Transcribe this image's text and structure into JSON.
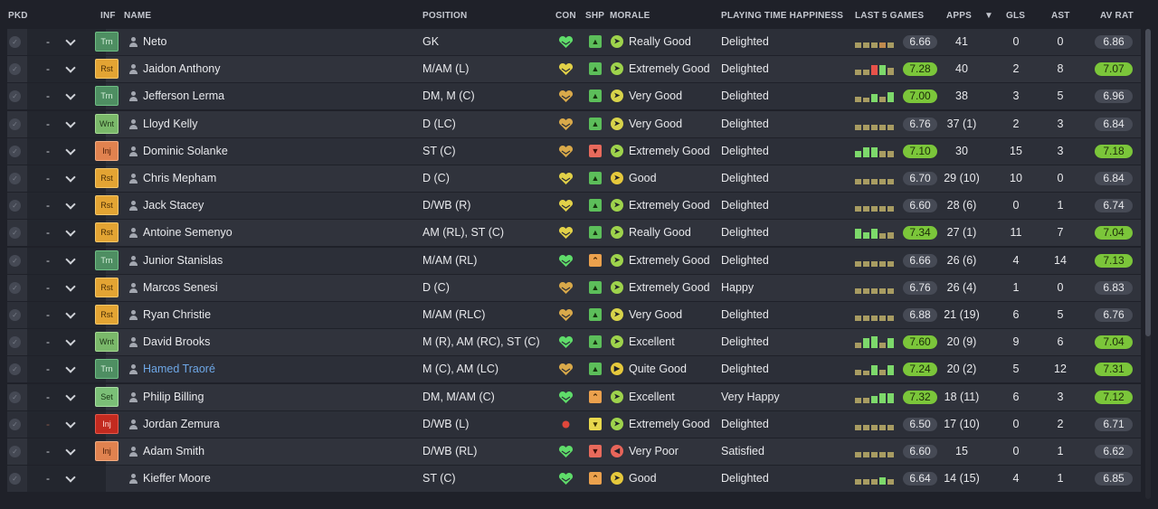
{
  "headers": {
    "pkd": "PKD",
    "inf": "INF",
    "name": "NAME",
    "position": "POSITION",
    "con": "CON",
    "shp": "SHP",
    "morale": "MORALE",
    "pth": "PLAYING TIME HAPPINESS",
    "form": "LAST 5 GAMES",
    "apps": "APPS",
    "gls": "GLS",
    "ast": "AST",
    "avrat": "AV RAT",
    "sort_indicator": "▼"
  },
  "colors": {
    "good_rating": "#7bc63a",
    "neutral_rating": "#464a55",
    "link": "#6ea7e6"
  },
  "players": [
    {
      "pkd": "-",
      "inf": "Trn",
      "inf_type": "trn",
      "name": "Neto",
      "position": "GK",
      "con": "green",
      "shp": "up",
      "morale": "Really Good",
      "morale_type": "rg",
      "pth": "Delighted",
      "form_bars": [
        0.45,
        0.45,
        0.45,
        0.5,
        0.45
      ],
      "form_colors": [
        "#a89c62",
        "#a89c62",
        "#a89c62",
        "#c08a4e",
        "#a89c62"
      ],
      "rating": "6.66",
      "rating_good": false,
      "apps": "41",
      "gls": "0",
      "ast": "0",
      "avrat": "6.86",
      "avrat_good": false
    },
    {
      "pkd": "-",
      "inf": "Rst",
      "inf_type": "rst",
      "name": "Jaidon Anthony",
      "position": "M/AM (L)",
      "con": "yellow",
      "shp": "up",
      "morale": "Extremely Good",
      "morale_type": "eg",
      "pth": "Delighted",
      "form_bars": [
        0.45,
        0.5,
        0.85,
        0.85,
        0.6
      ],
      "form_colors": [
        "#a89c62",
        "#a89c62",
        "#e7524a",
        "#7dd96b",
        "#a89c62"
      ],
      "rating": "7.28",
      "rating_good": true,
      "apps": "40",
      "gls": "2",
      "ast": "8",
      "avrat": "7.07",
      "avrat_good": true
    },
    {
      "pkd": "-",
      "inf": "Trn",
      "inf_type": "trn",
      "name": "Jefferson Lerma",
      "position": "DM, M (C)",
      "con": "orange",
      "shp": "up",
      "morale": "Very Good",
      "morale_type": "vg",
      "pth": "Delighted",
      "form_bars": [
        0.5,
        0.45,
        0.75,
        0.5,
        0.85
      ],
      "form_colors": [
        "#a89c62",
        "#a89c62",
        "#7dd96b",
        "#a89c62",
        "#7dd96b"
      ],
      "rating": "7.00",
      "rating_good": true,
      "apps": "38",
      "gls": "3",
      "ast": "5",
      "avrat": "6.96",
      "avrat_good": false
    },
    {
      "pkd": "-",
      "inf": "Wnt",
      "inf_type": "wnt",
      "name": "Lloyd Kelly",
      "position": "D (LC)",
      "con": "orange",
      "shp": "up",
      "morale": "Very Good",
      "morale_type": "vg",
      "pth": "Delighted",
      "form_bars": [
        0.45,
        0.45,
        0.45,
        0.45,
        0.45
      ],
      "form_colors": [
        "#a89c62",
        "#a89c62",
        "#a89c62",
        "#a89c62",
        "#a89c62"
      ],
      "rating": "6.76",
      "rating_good": false,
      "apps": "37 (1)",
      "gls": "2",
      "ast": "3",
      "avrat": "6.84",
      "avrat_good": false
    },
    {
      "pkd": "-",
      "inf": "Inj",
      "inf_type": "inj",
      "name": "Dominic Solanke",
      "position": "ST (C)",
      "con": "orange",
      "shp": "down",
      "morale": "Extremely Good",
      "morale_type": "eg",
      "pth": "Delighted",
      "form_bars": [
        0.5,
        0.85,
        0.85,
        0.5,
        0.5
      ],
      "form_colors": [
        "#7dd96b",
        "#7dd96b",
        "#7dd96b",
        "#a89c62",
        "#a89c62"
      ],
      "rating": "7.10",
      "rating_good": true,
      "apps": "30",
      "gls": "15",
      "ast": "3",
      "avrat": "7.18",
      "avrat_good": true
    },
    {
      "pkd": "-",
      "inf": "Rst",
      "inf_type": "rst",
      "name": "Chris Mepham",
      "position": "D (C)",
      "con": "yellow",
      "shp": "up",
      "morale": "Good",
      "morale_type": "g",
      "pth": "Delighted",
      "form_bars": [
        0.45,
        0.45,
        0.45,
        0.45,
        0.45
      ],
      "form_colors": [
        "#a89c62",
        "#a89c62",
        "#a89c62",
        "#a89c62",
        "#a89c62"
      ],
      "rating": "6.70",
      "rating_good": false,
      "apps": "29 (10)",
      "gls": "10",
      "ast": "0",
      "avrat": "6.84",
      "avrat_good": false
    },
    {
      "pkd": "-",
      "inf": "Rst",
      "inf_type": "rst",
      "name": "Jack Stacey",
      "position": "D/WB (R)",
      "con": "yellow",
      "shp": "up",
      "morale": "Extremely Good",
      "morale_type": "eg",
      "pth": "Delighted",
      "form_bars": [
        0.45,
        0.45,
        0.45,
        0.45,
        0.45
      ],
      "form_colors": [
        "#a89c62",
        "#a89c62",
        "#a89c62",
        "#a89c62",
        "#a89c62"
      ],
      "rating": "6.60",
      "rating_good": false,
      "apps": "28 (6)",
      "gls": "0",
      "ast": "1",
      "avrat": "6.74",
      "avrat_good": false
    },
    {
      "pkd": "-",
      "inf": "Rst",
      "inf_type": "rst",
      "name": "Antoine Semenyo",
      "position": "AM (RL), ST (C)",
      "con": "yellow",
      "shp": "up",
      "morale": "Really Good",
      "morale_type": "rg",
      "pth": "Delighted",
      "form_bars": [
        0.85,
        0.6,
        0.85,
        0.5,
        0.6
      ],
      "form_colors": [
        "#7dd96b",
        "#7dd96b",
        "#7dd96b",
        "#a89c62",
        "#a89c62"
      ],
      "rating": "7.34",
      "rating_good": true,
      "apps": "27 (1)",
      "gls": "11",
      "ast": "7",
      "avrat": "7.04",
      "avrat_good": true
    },
    {
      "pkd": "-",
      "inf": "Trn",
      "inf_type": "trn",
      "name": "Junior Stanislas",
      "position": "M/AM (RL)",
      "con": "green",
      "shp": "warn",
      "morale": "Extremely Good",
      "morale_type": "eg",
      "pth": "Delighted",
      "form_bars": [
        0.45,
        0.45,
        0.45,
        0.45,
        0.45
      ],
      "form_colors": [
        "#a89c62",
        "#a89c62",
        "#a89c62",
        "#a89c62",
        "#a89c62"
      ],
      "rating": "6.66",
      "rating_good": false,
      "apps": "26 (6)",
      "gls": "4",
      "ast": "14",
      "avrat": "7.13",
      "avrat_good": true
    },
    {
      "pkd": "-",
      "inf": "Rst",
      "inf_type": "rst",
      "name": "Marcos Senesi",
      "position": "D (C)",
      "con": "orange",
      "shp": "up",
      "morale": "Extremely Good",
      "morale_type": "eg",
      "pth": "Happy",
      "form_bars": [
        0.45,
        0.45,
        0.45,
        0.45,
        0.45
      ],
      "form_colors": [
        "#a89c62",
        "#a89c62",
        "#a89c62",
        "#a89c62",
        "#a89c62"
      ],
      "rating": "6.76",
      "rating_good": false,
      "apps": "26 (4)",
      "gls": "1",
      "ast": "0",
      "avrat": "6.83",
      "avrat_good": false
    },
    {
      "pkd": "-",
      "inf": "Rst",
      "inf_type": "rst",
      "name": "Ryan Christie",
      "position": "M/AM (RLC)",
      "con": "orange",
      "shp": "up",
      "morale": "Very Good",
      "morale_type": "vg",
      "pth": "Delighted",
      "form_bars": [
        0.45,
        0.45,
        0.45,
        0.45,
        0.45
      ],
      "form_colors": [
        "#a89c62",
        "#a89c62",
        "#a89c62",
        "#a89c62",
        "#a89c62"
      ],
      "rating": "6.88",
      "rating_good": false,
      "apps": "21 (19)",
      "gls": "6",
      "ast": "5",
      "avrat": "6.76",
      "avrat_good": false
    },
    {
      "pkd": "-",
      "inf": "Wnt",
      "inf_type": "wnt",
      "name": "David Brooks",
      "position": "M (R), AM (RC), ST (C)",
      "con": "green",
      "shp": "up",
      "morale": "Excellent",
      "morale_type": "ex",
      "pth": "Delighted",
      "form_bars": [
        0.45,
        0.85,
        1.0,
        0.5,
        0.85
      ],
      "form_colors": [
        "#a89c62",
        "#7dd96b",
        "#7dd96b",
        "#a89c62",
        "#7dd96b"
      ],
      "rating": "7.60",
      "rating_good": true,
      "apps": "20 (9)",
      "gls": "9",
      "ast": "6",
      "avrat": "7.04",
      "avrat_good": true
    },
    {
      "pkd": "-",
      "inf": "Trn",
      "inf_type": "trn",
      "name": "Hamed Traoré",
      "position": "M (C), AM (LC)",
      "con": "orange",
      "shp": "up",
      "morale": "Quite Good",
      "morale_type": "qg",
      "pth": "Delighted",
      "form_bars": [
        0.5,
        0.45,
        0.85,
        0.5,
        0.85
      ],
      "form_colors": [
        "#a89c62",
        "#a89c62",
        "#7dd96b",
        "#a89c62",
        "#7dd96b"
      ],
      "rating": "7.24",
      "rating_good": true,
      "apps": "20 (2)",
      "gls": "5",
      "ast": "12",
      "avrat": "7.31",
      "avrat_good": true,
      "highlight": true
    },
    {
      "pkd": "-",
      "inf": "Set",
      "inf_type": "set",
      "name": "Philip Billing",
      "position": "DM, M/AM (C)",
      "con": "green",
      "shp": "warn",
      "morale": "Excellent",
      "morale_type": "ex",
      "pth": "Very Happy",
      "form_bars": [
        0.45,
        0.45,
        0.6,
        0.85,
        0.85
      ],
      "form_colors": [
        "#a89c62",
        "#a89c62",
        "#7dd96b",
        "#7dd96b",
        "#7dd96b"
      ],
      "rating": "7.32",
      "rating_good": true,
      "apps": "18 (11)",
      "gls": "6",
      "ast": "3",
      "avrat": "7.12",
      "avrat_good": true
    },
    {
      "pkd": "-",
      "inf": "Inj",
      "inf_type": "inj-r",
      "name": "Jordan Zemura",
      "position": "D/WB (L)",
      "con": "red",
      "shp": "mid",
      "morale": "Extremely Good",
      "morale_type": "eg",
      "pth": "Delighted",
      "form_bars": [
        0.45,
        0.45,
        0.45,
        0.45,
        0.45
      ],
      "form_colors": [
        "#a89c62",
        "#a89c62",
        "#a89c62",
        "#a89c62",
        "#a89c62"
      ],
      "rating": "6.50",
      "rating_good": false,
      "apps": "17 (10)",
      "gls": "0",
      "ast": "2",
      "avrat": "6.71",
      "avrat_good": false,
      "pkd_dim": true
    },
    {
      "pkd": "-",
      "inf": "Inj",
      "inf_type": "inj",
      "name": "Adam Smith",
      "position": "D/WB (RL)",
      "con": "green",
      "shp": "down",
      "morale": "Very Poor",
      "morale_type": "vp",
      "pth": "Satisfied",
      "form_bars": [
        0.45,
        0.45,
        0.45,
        0.45,
        0.45
      ],
      "form_colors": [
        "#a89c62",
        "#a89c62",
        "#a89c62",
        "#a89c62",
        "#a89c62"
      ],
      "rating": "6.60",
      "rating_good": false,
      "apps": "15",
      "gls": "0",
      "ast": "1",
      "avrat": "6.62",
      "avrat_good": false
    },
    {
      "pkd": "-",
      "inf": "",
      "inf_type": "none",
      "name": "Kieffer Moore",
      "position": "ST (C)",
      "con": "green",
      "shp": "warn",
      "morale": "Good",
      "morale_type": "g",
      "pth": "Delighted",
      "form_bars": [
        0.45,
        0.45,
        0.45,
        0.6,
        0.45
      ],
      "form_colors": [
        "#a89c62",
        "#a89c62",
        "#a89c62",
        "#7dd96b",
        "#a89c62"
      ],
      "rating": "6.64",
      "rating_good": false,
      "apps": "14 (15)",
      "gls": "4",
      "ast": "1",
      "avrat": "6.85",
      "avrat_good": false
    }
  ]
}
